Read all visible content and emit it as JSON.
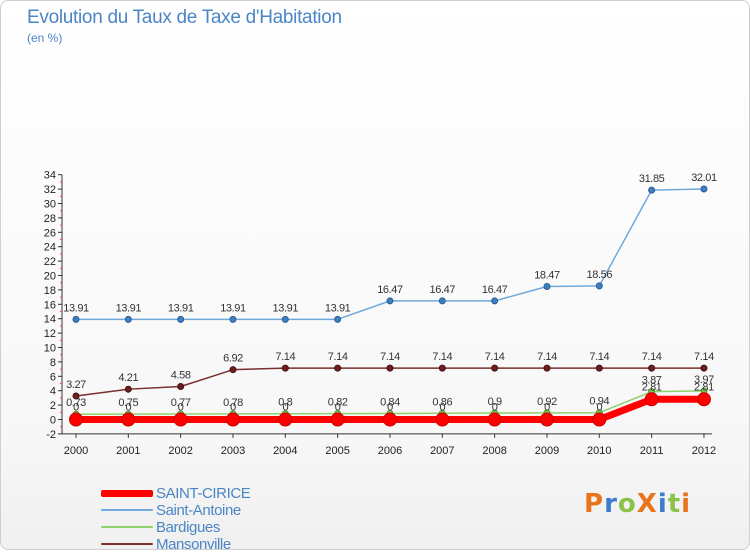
{
  "chart_data": {
    "type": "line",
    "title": "Evolution du Taux de Taxe d'Habitation",
    "subtitle": "(en %)",
    "xlabel": "",
    "ylabel": "",
    "x": [
      "2000",
      "2001",
      "2002",
      "2003",
      "2004",
      "2005",
      "2006",
      "2007",
      "2008",
      "2009",
      "2010",
      "2011",
      "2012"
    ],
    "ylim": [
      -2,
      34
    ],
    "yticks": [
      -2,
      0,
      2,
      4,
      6,
      8,
      10,
      12,
      14,
      16,
      18,
      20,
      22,
      24,
      26,
      28,
      30,
      32,
      34
    ],
    "grid": false,
    "legend_position": "bottom-left",
    "series": [
      {
        "name": "SAINT-CIRICE",
        "color": "#ff0000",
        "values": [
          0,
          0,
          0,
          0,
          0,
          0,
          0,
          0,
          0,
          0,
          0,
          2.81,
          2.81
        ],
        "labels": [
          "0",
          "0",
          "0",
          "0",
          "0",
          "0",
          "0",
          "0",
          "0",
          "0",
          "0",
          "2.81",
          "2.81"
        ]
      },
      {
        "name": "Saint-Antoine",
        "color": "#6fa8dc",
        "values": [
          13.91,
          13.91,
          13.91,
          13.91,
          13.91,
          13.91,
          16.47,
          16.47,
          16.47,
          18.47,
          18.56,
          31.85,
          32.01
        ],
        "labels": [
          "13.91",
          "13.91",
          "13.91",
          "13.91",
          "13.91",
          "13.91",
          "16.47",
          "16.47",
          "16.47",
          "18.47",
          "18.56",
          "31.85",
          "32.01"
        ]
      },
      {
        "name": "Bardigues",
        "color": "#8fd16b",
        "values": [
          0.73,
          0.75,
          0.77,
          0.78,
          0.8,
          0.82,
          0.84,
          0.86,
          0.9,
          0.92,
          0.94,
          3.87,
          3.97
        ],
        "labels": [
          "0.73",
          "0.75",
          "0.77",
          "0.78",
          "0.8",
          "0.82",
          "0.84",
          "0.86",
          "0.9",
          "0.92",
          "0.94",
          "3.87",
          "3.97"
        ]
      },
      {
        "name": "Mansonville",
        "color": "#7a2e2e",
        "values": [
          3.27,
          4.21,
          4.58,
          6.92,
          7.14,
          7.14,
          7.14,
          7.14,
          7.14,
          7.14,
          7.14,
          7.14,
          7.14
        ],
        "labels": [
          "3.27",
          "4.21",
          "4.58",
          "6.92",
          "7.14",
          "7.14",
          "7.14",
          "7.14",
          "7.14",
          "7.14",
          "7.14",
          "7.14",
          "7.14"
        ]
      }
    ]
  },
  "logo": {
    "text": "ProXiti",
    "colors": [
      "#e8741c",
      "#3b7bd0",
      "#8bc34a",
      "#e8741c",
      "#3b7bd0",
      "#8bc34a",
      "#e8741c"
    ]
  }
}
